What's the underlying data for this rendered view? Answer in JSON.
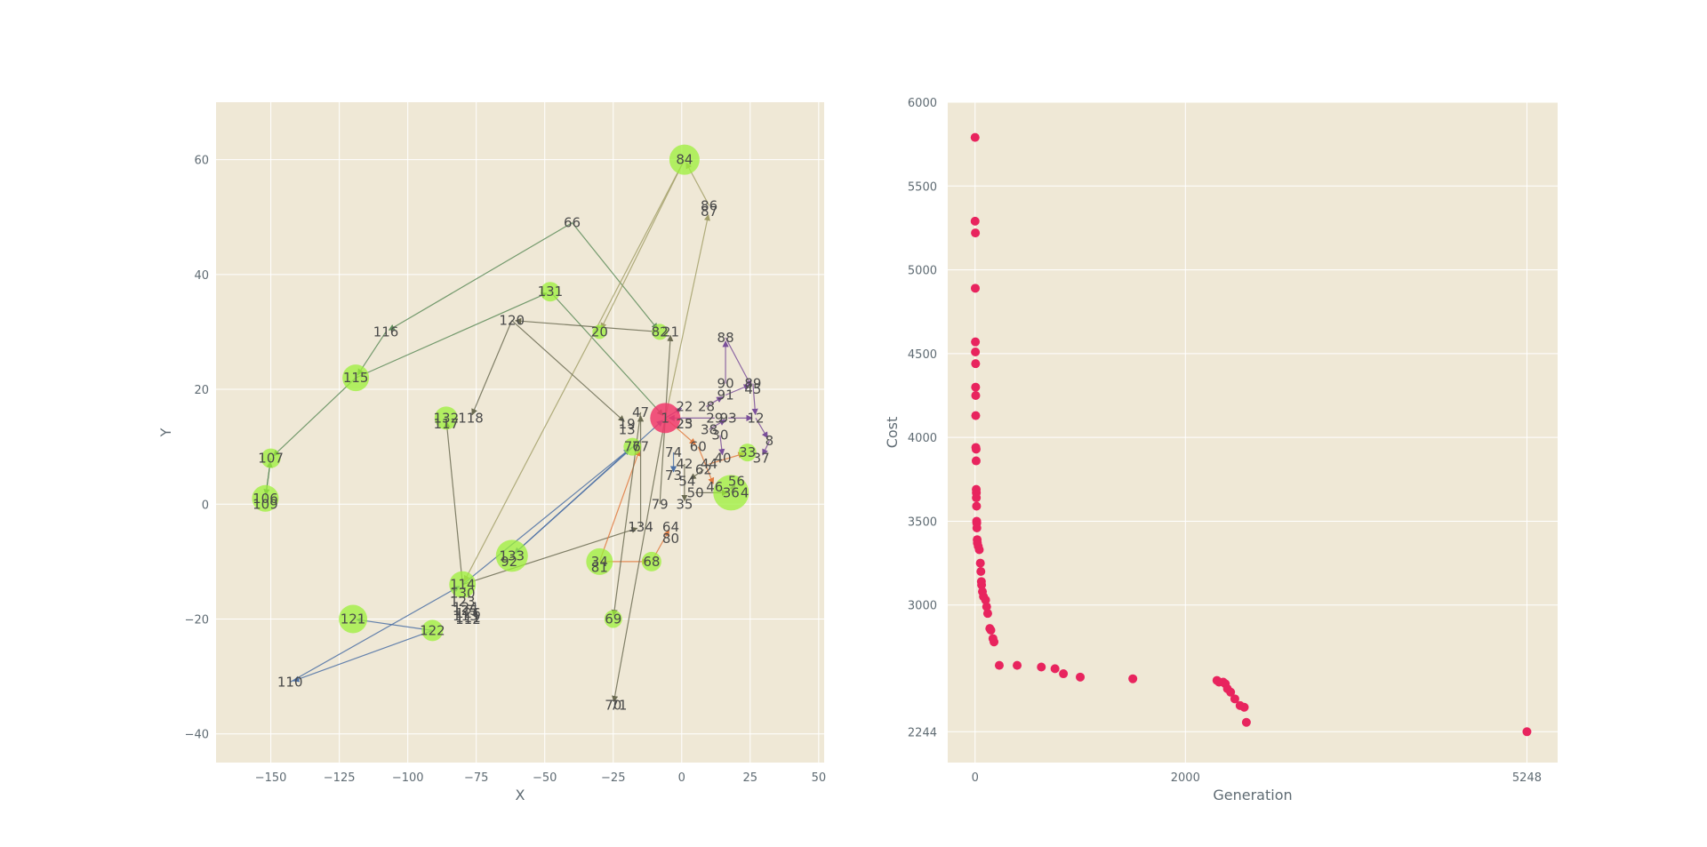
{
  "chart_data": [
    {
      "type": "network",
      "xlabel": "X",
      "ylabel": "Y",
      "xlim": [
        -170,
        52
      ],
      "ylim": [
        -45,
        70
      ],
      "xticks": [
        -150,
        -125,
        -100,
        -75,
        -50,
        -25,
        0,
        25,
        50
      ],
      "yticks": [
        -40,
        -20,
        0,
        20,
        40,
        60
      ],
      "grid": true,
      "background": "#efe8d6",
      "node_color": "#9cf03a",
      "highlight_color": "#f0386b",
      "highlight_node": "1",
      "nodes": [
        {
          "id": "84",
          "x": 1,
          "y": 60,
          "r": 17
        },
        {
          "id": "66",
          "x": -40,
          "y": 49,
          "r": 0
        },
        {
          "id": "86",
          "x": 10,
          "y": 52,
          "r": 0
        },
        {
          "id": "87",
          "x": 10,
          "y": 51,
          "r": 0
        },
        {
          "id": "131",
          "x": -48,
          "y": 37,
          "r": 11
        },
        {
          "id": "116",
          "x": -108,
          "y": 30,
          "r": 0
        },
        {
          "id": "120",
          "x": -62,
          "y": 32,
          "r": 0
        },
        {
          "id": "20",
          "x": -30,
          "y": 30,
          "r": 8
        },
        {
          "id": "82",
          "x": -8,
          "y": 30,
          "r": 9
        },
        {
          "id": "21",
          "x": -4,
          "y": 30,
          "r": 0
        },
        {
          "id": "88",
          "x": 16,
          "y": 29,
          "r": 0
        },
        {
          "id": "115",
          "x": -119,
          "y": 22,
          "r": 15
        },
        {
          "id": "1",
          "x": -6,
          "y": 15,
          "r": 17
        },
        {
          "id": "132",
          "x": -86,
          "y": 15,
          "r": 13
        },
        {
          "id": "117",
          "x": -86,
          "y": 14,
          "r": 0
        },
        {
          "id": "118",
          "x": -77,
          "y": 15,
          "r": 0
        },
        {
          "id": "107",
          "x": -150,
          "y": 8,
          "r": 11
        },
        {
          "id": "106",
          "x": -152,
          "y": 1,
          "r": 15
        },
        {
          "id": "109",
          "x": -152,
          "y": 0,
          "r": 0
        },
        {
          "id": "121",
          "x": -120,
          "y": -20,
          "r": 16
        },
        {
          "id": "122",
          "x": -91,
          "y": -22,
          "r": 12
        },
        {
          "id": "110",
          "x": -143,
          "y": -31,
          "r": 0
        },
        {
          "id": "133",
          "x": -62,
          "y": -9,
          "r": 18
        },
        {
          "id": "92",
          "x": -63,
          "y": -10,
          "r": 0
        },
        {
          "id": "134",
          "x": -15,
          "y": -4,
          "r": 0
        },
        {
          "id": "68",
          "x": -11,
          "y": -10,
          "r": 11
        },
        {
          "id": "34",
          "x": -30,
          "y": -10,
          "r": 15
        },
        {
          "id": "81",
          "x": -30,
          "y": -11,
          "r": 0
        },
        {
          "id": "69",
          "x": -25,
          "y": -20,
          "r": 10
        },
        {
          "id": "70",
          "x": -25,
          "y": -35,
          "r": 0
        },
        {
          "id": "71",
          "x": -23,
          "y": -35,
          "r": 0
        },
        {
          "id": "114",
          "x": -80,
          "y": -14,
          "r": 15
        },
        {
          "id": "130",
          "x": -80,
          "y": -15.5,
          "r": 0
        },
        {
          "id": "123",
          "x": -80,
          "y": -17,
          "r": 0
        },
        {
          "id": "124",
          "x": -79,
          "y": -18,
          "r": 0
        },
        {
          "id": "125",
          "x": -79,
          "y": -18.5,
          "r": 0
        },
        {
          "id": "126",
          "x": -78,
          "y": -19,
          "r": 0
        },
        {
          "id": "113",
          "x": -79,
          "y": -19.5,
          "r": 0
        },
        {
          "id": "111",
          "x": -78,
          "y": -19.8,
          "r": 0
        },
        {
          "id": "112",
          "x": -78,
          "y": -20.1,
          "r": 0
        },
        {
          "id": "36",
          "x": 18,
          "y": 2,
          "r": 20
        },
        {
          "id": "4",
          "x": 23,
          "y": 2,
          "r": 0
        },
        {
          "id": "22",
          "x": 1,
          "y": 17,
          "r": 0
        },
        {
          "id": "23",
          "x": 1,
          "y": 14,
          "r": 0
        },
        {
          "id": "76",
          "x": -18,
          "y": 10,
          "r": 10
        },
        {
          "id": "77",
          "x": -15,
          "y": 10,
          "r": 0
        },
        {
          "id": "79",
          "x": -8,
          "y": 0,
          "r": 0
        },
        {
          "id": "64",
          "x": -4,
          "y": -4,
          "r": 0
        },
        {
          "id": "80",
          "x": -4,
          "y": -6,
          "r": 0
        },
        {
          "id": "35",
          "x": 1,
          "y": 0,
          "r": 0
        },
        {
          "id": "50",
          "x": 5,
          "y": 2,
          "r": 0
        },
        {
          "id": "90",
          "x": 16,
          "y": 21,
          "r": 0
        },
        {
          "id": "91",
          "x": 16,
          "y": 19,
          "r": 0
        },
        {
          "id": "89",
          "x": 26,
          "y": 21,
          "r": 0
        },
        {
          "id": "45",
          "x": 26,
          "y": 20,
          "r": 0
        },
        {
          "id": "12",
          "x": 27,
          "y": 15,
          "r": 0
        },
        {
          "id": "28",
          "x": 9,
          "y": 17,
          "r": 0
        },
        {
          "id": "29",
          "x": 12,
          "y": 15,
          "r": 0
        },
        {
          "id": "93",
          "x": 17,
          "y": 15,
          "r": 0
        },
        {
          "id": "30",
          "x": 14,
          "y": 12,
          "r": 0
        },
        {
          "id": "8",
          "x": 32,
          "y": 11,
          "r": 0
        },
        {
          "id": "33",
          "x": 24,
          "y": 9,
          "r": 10
        },
        {
          "id": "37",
          "x": 29,
          "y": 8,
          "r": 0
        },
        {
          "id": "40",
          "x": 15,
          "y": 8,
          "r": 0
        },
        {
          "id": "47",
          "x": -15,
          "y": 16,
          "r": 0
        },
        {
          "id": "19",
          "x": -20,
          "y": 14,
          "r": 0
        },
        {
          "id": "13",
          "x": -20,
          "y": 13,
          "r": 0
        },
        {
          "id": "74",
          "x": -3,
          "y": 9,
          "r": 0
        },
        {
          "id": "73",
          "x": -3,
          "y": 5,
          "r": 0
        },
        {
          "id": "42",
          "x": 1,
          "y": 7,
          "r": 0
        },
        {
          "id": "25",
          "x": 1,
          "y": 14,
          "r": 0
        },
        {
          "id": "60",
          "x": 6,
          "y": 10,
          "r": 0
        },
        {
          "id": "38",
          "x": 10,
          "y": 13,
          "r": 0
        },
        {
          "id": "46",
          "x": 12,
          "y": 3,
          "r": 0
        },
        {
          "id": "56",
          "x": 20,
          "y": 4,
          "r": 0
        },
        {
          "id": "62",
          "x": 8,
          "y": 6,
          "r": 0
        },
        {
          "id": "54",
          "x": 2,
          "y": 4,
          "r": 0
        },
        {
          "id": "44",
          "x": 10,
          "y": 7,
          "r": 0
        }
      ],
      "edges": [
        {
          "from": "66",
          "to": "116",
          "color": "#5e8c5a"
        },
        {
          "from": "66",
          "to": "82",
          "color": "#5e8c5a"
        },
        {
          "from": "116",
          "to": "115",
          "color": "#5e8c5a"
        },
        {
          "from": "115",
          "to": "107",
          "color": "#5e8c5a"
        },
        {
          "from": "115",
          "to": "131",
          "color": "#5e8c5a"
        },
        {
          "from": "107",
          "to": "106",
          "color": "#5e8c5a"
        },
        {
          "from": "106",
          "to": "107",
          "color": "#5e8c5a"
        },
        {
          "from": "131",
          "to": "1",
          "color": "#5e8c5a"
        },
        {
          "from": "84",
          "to": "20",
          "color": "#a3a06a"
        },
        {
          "from": "84",
          "to": "114",
          "color": "#a3a06a"
        },
        {
          "from": "86",
          "to": "84",
          "color": "#a3a06a"
        },
        {
          "from": "1",
          "to": "87",
          "color": "#a3a06a"
        },
        {
          "from": "120",
          "to": "118",
          "color": "#6b6b52"
        },
        {
          "from": "120",
          "to": "19",
          "color": "#6b6b52"
        },
        {
          "from": "82",
          "to": "120",
          "color": "#6b6b52"
        },
        {
          "from": "114",
          "to": "132",
          "color": "#6b6b52"
        },
        {
          "from": "114",
          "to": "134",
          "color": "#6b6b52"
        },
        {
          "from": "122",
          "to": "121",
          "color": "#4a6fa5"
        },
        {
          "from": "122",
          "to": "110",
          "color": "#4a6fa5"
        },
        {
          "from": "110",
          "to": "114",
          "color": "#4a6fa5"
        },
        {
          "from": "114",
          "to": "76",
          "color": "#4a6fa5"
        },
        {
          "from": "76",
          "to": "133",
          "color": "#4a6fa5"
        },
        {
          "from": "133",
          "to": "1",
          "color": "#4a6fa5"
        },
        {
          "from": "34",
          "to": "68",
          "color": "#e07a3f"
        },
        {
          "from": "68",
          "to": "64",
          "color": "#e07a3f"
        },
        {
          "from": "34",
          "to": "77",
          "color": "#e07a3f"
        },
        {
          "from": "1",
          "to": "70",
          "color": "#6b6b52"
        },
        {
          "from": "47",
          "to": "69",
          "color": "#6b6b52"
        },
        {
          "from": "134",
          "to": "47",
          "color": "#6b6b52"
        },
        {
          "from": "79",
          "to": "21",
          "color": "#6b6b52"
        },
        {
          "from": "90",
          "to": "88",
          "color": "#7a4f9a"
        },
        {
          "from": "88",
          "to": "45",
          "color": "#7a4f9a"
        },
        {
          "from": "89",
          "to": "12",
          "color": "#7a4f9a"
        },
        {
          "from": "12",
          "to": "8",
          "color": "#7a4f9a"
        },
        {
          "from": "8",
          "to": "37",
          "color": "#7a4f9a"
        },
        {
          "from": "28",
          "to": "91",
          "color": "#7a4f9a"
        },
        {
          "from": "93",
          "to": "12",
          "color": "#7a4f9a"
        },
        {
          "from": "30",
          "to": "40",
          "color": "#7a4f9a"
        },
        {
          "from": "29",
          "to": "1",
          "color": "#7a4f9a"
        },
        {
          "from": "36",
          "to": "56",
          "color": "#7a4f9a"
        },
        {
          "from": "1",
          "to": "22",
          "color": "#7a4f9a"
        },
        {
          "from": "1",
          "to": "60",
          "color": "#e07a3f"
        },
        {
          "from": "60",
          "to": "46",
          "color": "#e07a3f"
        },
        {
          "from": "44",
          "to": "33",
          "color": "#e07a3f"
        },
        {
          "from": "62",
          "to": "54",
          "color": "#6b6b52"
        },
        {
          "from": "74",
          "to": "73",
          "color": "#4a6fa5"
        },
        {
          "from": "42",
          "to": "35",
          "color": "#6b6b52"
        },
        {
          "from": "50",
          "to": "36",
          "color": "#6b6b52"
        },
        {
          "from": "38",
          "to": "93",
          "color": "#7a4f9a"
        },
        {
          "from": "91",
          "to": "89",
          "color": "#7a4f9a"
        }
      ]
    },
    {
      "type": "scatter",
      "xlabel": "Generation",
      "ylabel": "Cost",
      "xlim": [
        -260,
        5540
      ],
      "ylim": [
        2060,
        6000
      ],
      "xticks": [
        0,
        2000,
        5248
      ],
      "yticks": [
        2244,
        3000,
        3500,
        4000,
        4500,
        5000,
        5500,
        6000
      ],
      "grid": true,
      "background": "#efe8d6",
      "point_color": "#e8245e",
      "series": [
        {
          "x": [
            0,
            0,
            3,
            2,
            3,
            3,
            5,
            5,
            6,
            6,
            7,
            10,
            10,
            11,
            12,
            12,
            14,
            15,
            16,
            17,
            20,
            22,
            30,
            40,
            50,
            55,
            60,
            62,
            70,
            80,
            100,
            110,
            120,
            140,
            150,
            170,
            180,
            230,
            400,
            630,
            760,
            840,
            1000,
            1500,
            2300,
            2320,
            2360,
            2380,
            2400,
            2430,
            2470,
            2520,
            2560,
            2580,
            5248
          ],
          "y": [
            5790,
            5290,
            5220,
            4890,
            4570,
            4510,
            4440,
            4300,
            4250,
            4130,
            3940,
            3930,
            3860,
            3690,
            3670,
            3640,
            3590,
            3500,
            3490,
            3460,
            3390,
            3370,
            3350,
            3330,
            3250,
            3200,
            3140,
            3120,
            3080,
            3050,
            3030,
            2990,
            2950,
            2860,
            2850,
            2800,
            2780,
            2640,
            2640,
            2630,
            2620,
            2590,
            2570,
            2560,
            2550,
            2540,
            2540,
            2530,
            2500,
            2480,
            2440,
            2400,
            2390,
            2300,
            2244
          ]
        }
      ]
    }
  ]
}
